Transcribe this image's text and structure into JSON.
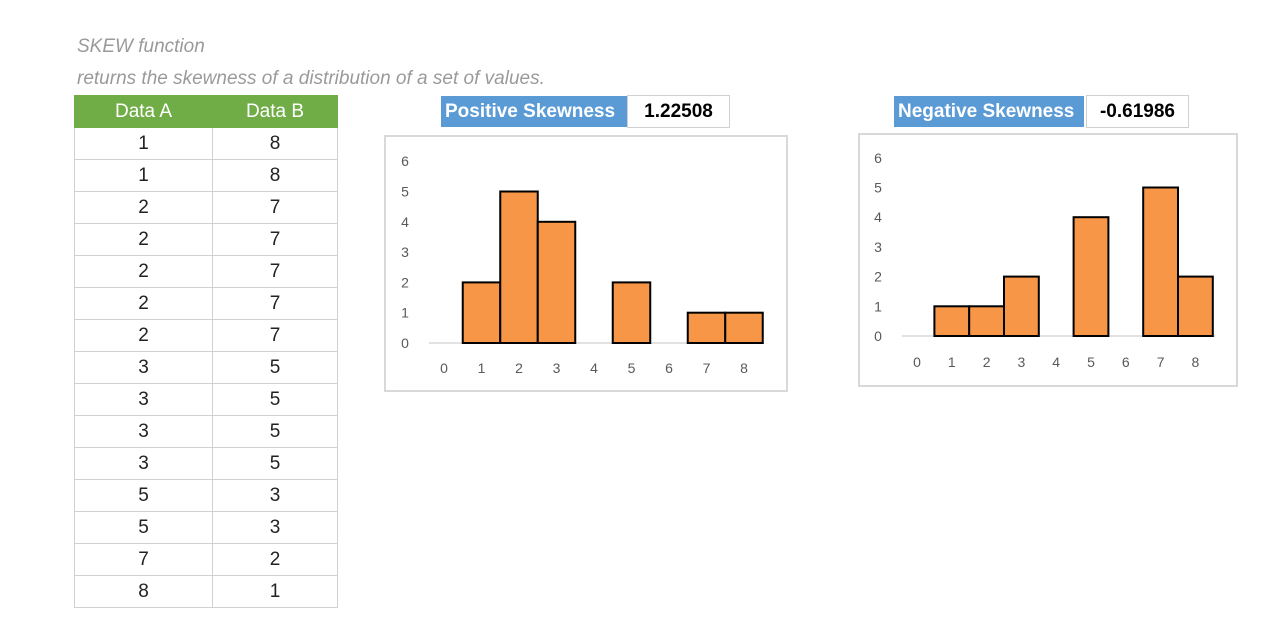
{
  "caption": {
    "title": "SKEW function",
    "subtitle": "returns the skewness of a distribution of a set of values."
  },
  "table": {
    "headers": [
      "Data A",
      "Data B"
    ],
    "rows": [
      [
        "1",
        "8"
      ],
      [
        "1",
        "8"
      ],
      [
        "2",
        "7"
      ],
      [
        "2",
        "7"
      ],
      [
        "2",
        "7"
      ],
      [
        "2",
        "7"
      ],
      [
        "2",
        "7"
      ],
      [
        "3",
        "5"
      ],
      [
        "3",
        "5"
      ],
      [
        "3",
        "5"
      ],
      [
        "3",
        "5"
      ],
      [
        "5",
        "3"
      ],
      [
        "5",
        "3"
      ],
      [
        "7",
        "2"
      ],
      [
        "8",
        "1"
      ]
    ],
    "header_color": "#70ad47"
  },
  "positive": {
    "label": "Positive Skewness",
    "value": "1.22508"
  },
  "negative": {
    "label": "Negative Skewness",
    "value": "-0.61986"
  },
  "colors": {
    "bar_fill": "#f79646",
    "bar_stroke": "#000000",
    "label_bg": "#5b9bd5"
  },
  "chart_data": [
    {
      "type": "bar",
      "title": "",
      "x": [
        0,
        1,
        2,
        3,
        4,
        5,
        6,
        7,
        8
      ],
      "values": [
        0,
        2,
        5,
        4,
        0,
        2,
        0,
        1,
        1
      ],
      "xlim": [
        0,
        8
      ],
      "ylim": [
        0,
        6
      ],
      "yticks": [
        0,
        1,
        2,
        3,
        4,
        5,
        6
      ],
      "xticks": [
        0,
        1,
        2,
        3,
        4,
        5,
        6,
        7,
        8
      ],
      "xlabel": "",
      "ylabel": "",
      "grid": false,
      "legend": "none"
    },
    {
      "type": "bar",
      "title": "",
      "x": [
        0,
        1,
        2,
        3,
        4,
        5,
        6,
        7,
        8
      ],
      "values": [
        0,
        1,
        1,
        2,
        0,
        4,
        0,
        5,
        2
      ],
      "xlim": [
        0,
        8
      ],
      "ylim": [
        0,
        6
      ],
      "yticks": [
        0,
        1,
        2,
        3,
        4,
        5,
        6
      ],
      "xticks": [
        0,
        1,
        2,
        3,
        4,
        5,
        6,
        7,
        8
      ],
      "xlabel": "",
      "ylabel": "",
      "grid": false,
      "legend": "none"
    }
  ]
}
